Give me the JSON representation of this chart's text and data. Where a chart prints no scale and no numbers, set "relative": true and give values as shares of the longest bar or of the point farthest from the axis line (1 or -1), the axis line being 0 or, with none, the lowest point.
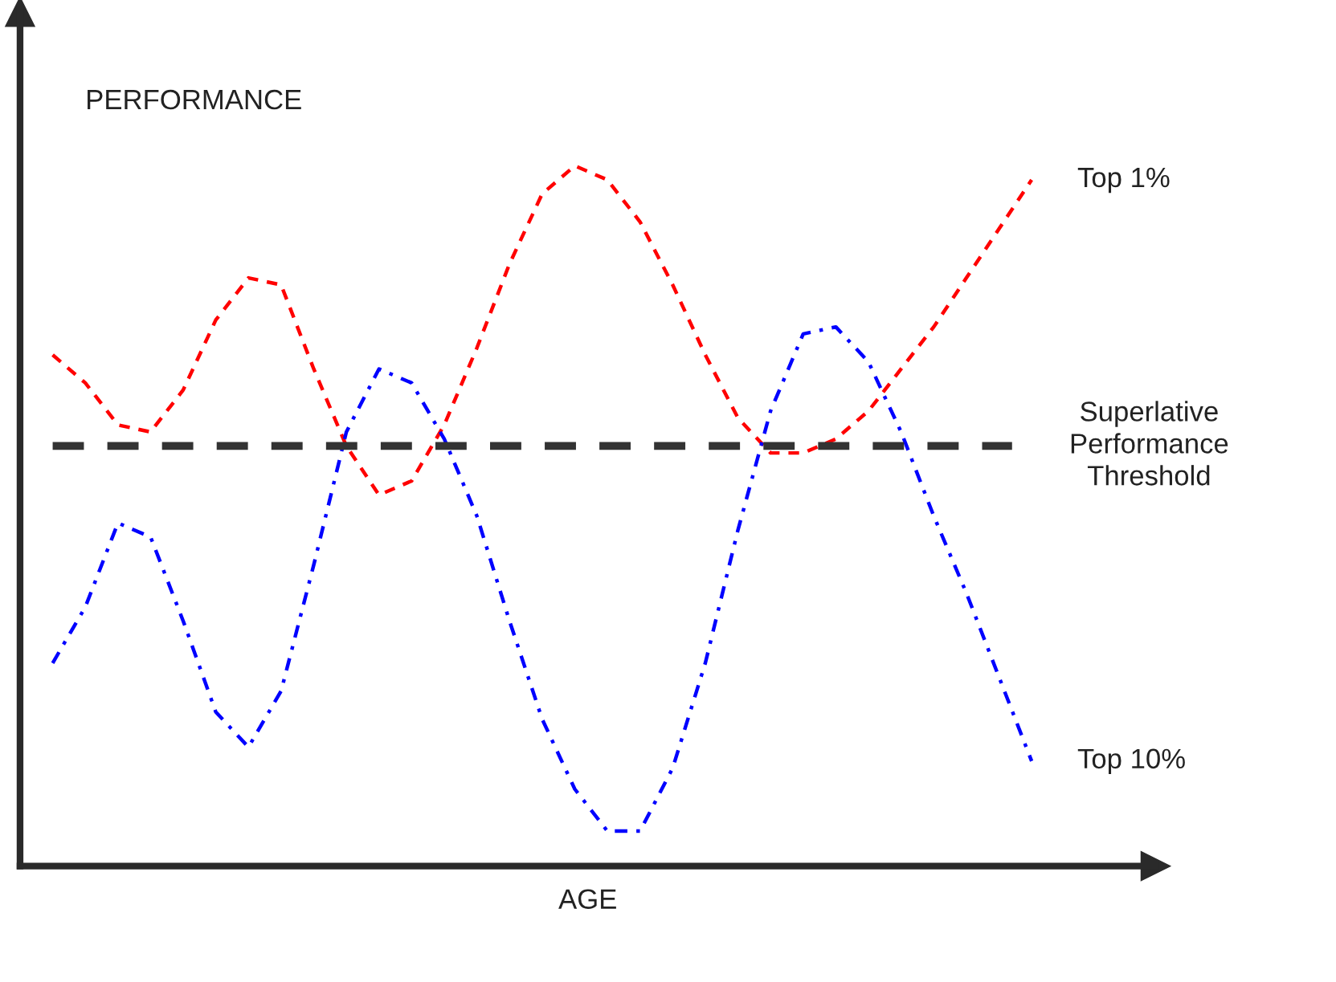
{
  "chart_data": {
    "type": "line",
    "relative": true,
    "xlabel": "AGE",
    "ylabel": "PERFORMANCE",
    "legend": false,
    "categories": [
      null,
      null,
      null,
      null,
      null,
      null,
      null,
      null,
      null,
      null,
      null,
      null,
      null,
      null,
      null,
      null,
      null,
      null,
      null,
      null,
      null,
      null,
      null,
      null,
      null,
      null,
      null,
      null,
      null,
      null,
      null
    ],
    "series": [
      {
        "name": "Top 1%",
        "color": "#ff0000",
        "line_style": "dashed",
        "values": [
          0.73,
          0.69,
          0.63,
          0.62,
          0.68,
          0.78,
          0.84,
          0.83,
          0.71,
          0.6,
          0.53,
          0.55,
          0.63,
          0.74,
          0.86,
          0.96,
          1.0,
          0.98,
          0.92,
          0.83,
          0.73,
          0.64,
          0.59,
          0.59,
          0.61,
          0.65,
          0.71,
          0.77,
          0.84,
          0.91,
          0.98
        ]
      },
      {
        "name": "Top 10%",
        "color": "#0000ff",
        "line_style": "dashdot",
        "values": [
          0.29,
          0.37,
          0.49,
          0.47,
          0.35,
          0.22,
          0.17,
          0.25,
          0.43,
          0.62,
          0.71,
          0.69,
          0.61,
          0.5,
          0.35,
          0.21,
          0.11,
          0.05,
          0.05,
          0.14,
          0.29,
          0.48,
          0.65,
          0.76,
          0.77,
          0.72,
          0.62,
          0.5,
          0.39,
          0.27,
          0.15
        ]
      }
    ],
    "ref_lines": [
      {
        "axis": "y",
        "value": 0.6,
        "label": "Superlative Performance Threshold",
        "color": "#333333",
        "line_style": "dashed"
      }
    ]
  }
}
